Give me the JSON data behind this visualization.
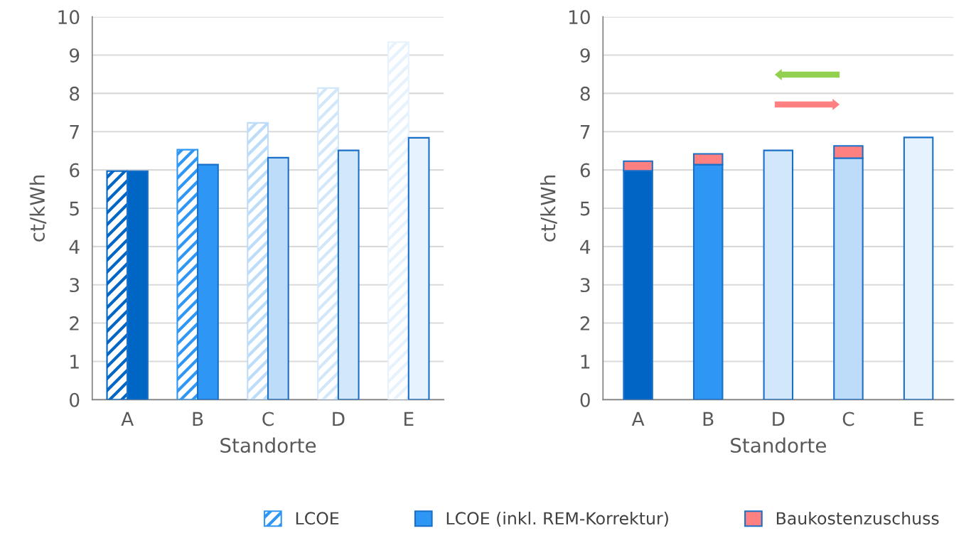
{
  "chart_data": [
    {
      "type": "bar",
      "xlabel": "Standorte",
      "ylabel": "ct/kWh",
      "categories": [
        "A",
        "B",
        "C",
        "D",
        "E"
      ],
      "ylim": [
        0,
        10
      ],
      "yticks": [
        0,
        1,
        2,
        3,
        4,
        5,
        6,
        7,
        8,
        9,
        10
      ],
      "grid": "y",
      "legend": "bottom",
      "series": [
        {
          "name": "LCOE",
          "colors": [
            "#0066c6",
            "#2e96f5",
            "#bcdcfa",
            "#d3e7fb",
            "#e6f2fd"
          ],
          "values": [
            5.97,
            6.53,
            7.23,
            8.14,
            9.34
          ]
        },
        {
          "name": "LCOE (inkl. REM-Korrektur)",
          "colors": [
            "#0066c6",
            "#2e96f5",
            "#bcdcfa",
            "#d3e7fb",
            "#e6f2fd"
          ],
          "values": [
            5.97,
            6.14,
            6.32,
            6.51,
            6.84
          ]
        }
      ]
    },
    {
      "type": "bar",
      "stacked": true,
      "xlabel": "Standorte",
      "ylabel": "ct/kWh",
      "categories": [
        "A",
        "B",
        "D",
        "C",
        "E"
      ],
      "ylim": [
        0,
        10
      ],
      "yticks": [
        0,
        1,
        2,
        3,
        4,
        5,
        6,
        7,
        8,
        9,
        10
      ],
      "grid": "y",
      "legend": "bottom",
      "series": [
        {
          "name": "LCOE (inkl. REM-Korrektur)",
          "colors": [
            "#0066c6",
            "#2e96f5",
            "#d3e7fb",
            "#bcdcfa",
            "#e6f2fd"
          ],
          "values": [
            5.98,
            6.14,
            6.51,
            6.31,
            6.85
          ]
        },
        {
          "name": "Baukostenzuschuss",
          "color": "#ff8080",
          "values": [
            0.25,
            0.28,
            null,
            0.32,
            null
          ]
        }
      ]
    }
  ]
}
